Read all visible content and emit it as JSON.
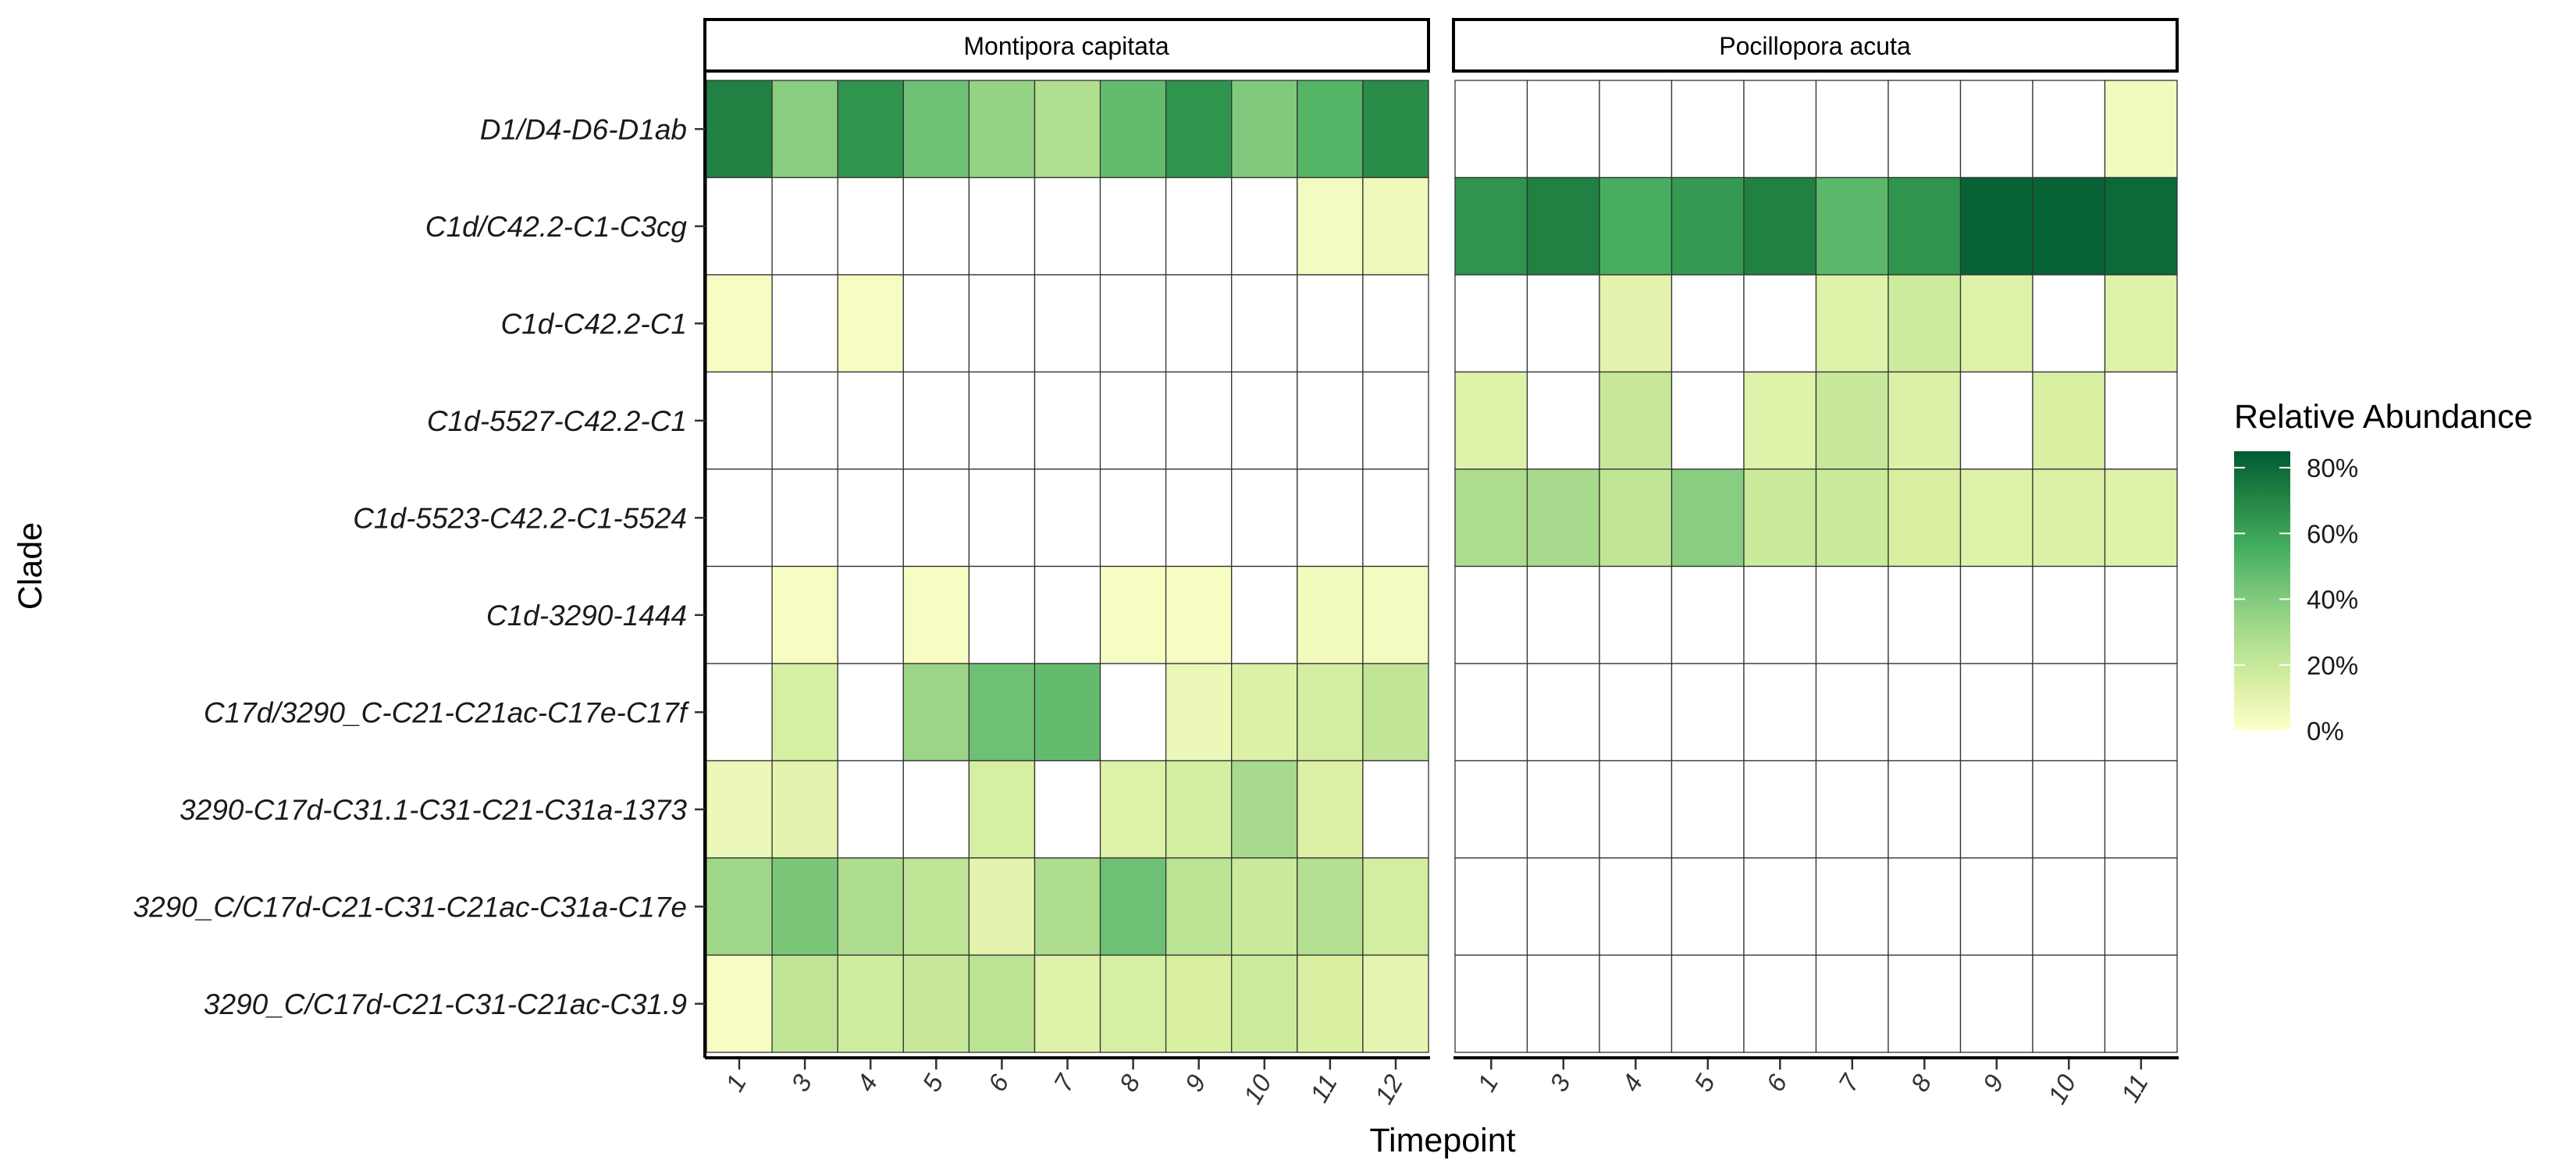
{
  "chart_data": {
    "type": "heatmap",
    "xlabel": "Timepoint",
    "ylabel": "Clade",
    "legend": {
      "title": "Relative Abundance",
      "placement": "right",
      "min": 0,
      "max": 85,
      "ticks": [
        "0%",
        "20%",
        "40%",
        "60%",
        "80%"
      ],
      "tick_values": [
        0,
        20,
        40,
        60,
        80
      ],
      "colors": [
        "#ffffcc",
        "#d9f0a3",
        "#addd8e",
        "#78c679",
        "#41ab5d",
        "#238443",
        "#005a32"
      ]
    },
    "clades": [
      "D1/D4-D6-D1ab",
      "C1d/C42.2-C1-C3cg",
      "C1d-C42.2-C1",
      "C1d-5527-C42.2-C1",
      "C1d-5523-C42.2-C1-5524",
      "C1d-3290-1444",
      "C17d/3290_C-C21-C21ac-C17e-C17f",
      "3290-C17d-C31.1-C31-C21-C31a-1373",
      "3290_C/C17d-C21-C31-C21ac-C31a-C17e",
      "3290_C/C17d-C21-C31-C21ac-C31.9"
    ],
    "panels": [
      {
        "name": "Montipora capitata",
        "timepoints": [
          "1",
          "3",
          "4",
          "5",
          "6",
          "7",
          "8",
          "9",
          "10",
          "11",
          "12"
        ],
        "values": [
          [
            72,
            38,
            65,
            45,
            35,
            27,
            48,
            65,
            40,
            52,
            68
          ],
          [
            null,
            null,
            null,
            null,
            null,
            null,
            null,
            null,
            null,
            4,
            6
          ],
          [
            3,
            null,
            3,
            null,
            null,
            null,
            null,
            null,
            null,
            null,
            null
          ],
          [
            null,
            null,
            null,
            null,
            null,
            null,
            null,
            null,
            null,
            null,
            null
          ],
          [
            null,
            null,
            null,
            null,
            null,
            null,
            null,
            null,
            null,
            null,
            null
          ],
          [
            null,
            3,
            null,
            3,
            null,
            null,
            3,
            3,
            null,
            5,
            4
          ],
          [
            null,
            15,
            null,
            33,
            45,
            48,
            null,
            7,
            13,
            16,
            22
          ],
          [
            7,
            10,
            null,
            null,
            15,
            null,
            12,
            16,
            30,
            13,
            null
          ],
          [
            32,
            42,
            28,
            23,
            10,
            28,
            45,
            24,
            19,
            26,
            16
          ],
          [
            3,
            22,
            17,
            20,
            24,
            12,
            15,
            14,
            18,
            14,
            9
          ]
        ]
      },
      {
        "name": "Pocillopora acuta",
        "timepoints": [
          "1",
          "3",
          "4",
          "5",
          "6",
          "7",
          "8",
          "9",
          "10",
          "11"
        ],
        "values": [
          [
            null,
            null,
            null,
            null,
            null,
            null,
            null,
            null,
            null,
            5
          ],
          [
            65,
            72,
            55,
            63,
            72,
            50,
            65,
            82,
            82,
            80
          ],
          [
            null,
            null,
            10,
            null,
            null,
            12,
            18,
            12,
            null,
            12
          ],
          [
            12,
            null,
            20,
            null,
            12,
            20,
            13,
            null,
            14,
            null
          ],
          [
            28,
            30,
            22,
            38,
            19,
            19,
            14,
            12,
            13,
            12
          ],
          [
            null,
            null,
            null,
            null,
            null,
            null,
            null,
            null,
            null,
            null
          ],
          [
            null,
            null,
            null,
            null,
            null,
            null,
            null,
            null,
            null,
            null
          ],
          [
            null,
            null,
            null,
            null,
            null,
            null,
            null,
            null,
            null,
            null
          ],
          [
            null,
            null,
            null,
            null,
            null,
            null,
            null,
            null,
            null,
            null
          ],
          [
            null,
            null,
            null,
            null,
            null,
            null,
            null,
            null,
            null,
            null
          ]
        ]
      }
    ]
  }
}
